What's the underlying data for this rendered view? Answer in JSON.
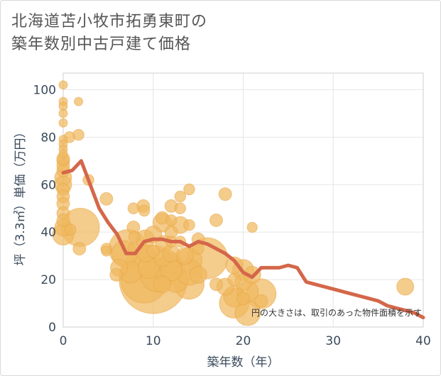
{
  "chart_data": {
    "type": "scatter",
    "title_lines": [
      "北海道苫小牧市拓勇東町の",
      "築年数別中古戸建て価格"
    ],
    "xlabel": "築年数（年）",
    "ylabel": "坪（3.3㎡）単価（万円）",
    "xlim": [
      0,
      40
    ],
    "ylim": [
      0,
      107
    ],
    "x_ticks": [
      0,
      10,
      20,
      30,
      40
    ],
    "y_ticks": [
      0,
      20,
      40,
      60,
      80,
      100
    ],
    "note": "円の大きさは、取引のあった物件面積を示す",
    "colors": {
      "bubble": "#f0b860",
      "bubble_edge": "#e8a23c",
      "line": "#d4674a",
      "grid": "#e6e6e6"
    },
    "bubbles": [
      {
        "x": 0,
        "y": 102,
        "s": 1
      },
      {
        "x": 0,
        "y": 95,
        "s": 1
      },
      {
        "x": 0,
        "y": 93,
        "s": 1
      },
      {
        "x": 0,
        "y": 90,
        "s": 1
      },
      {
        "x": 0,
        "y": 86,
        "s": 1
      },
      {
        "x": 0,
        "y": 79,
        "s": 1
      },
      {
        "x": 0,
        "y": 77,
        "s": 1
      },
      {
        "x": 0,
        "y": 75,
        "s": 1
      },
      {
        "x": 0,
        "y": 73,
        "s": 1
      },
      {
        "x": 0,
        "y": 70,
        "s": 1.5
      },
      {
        "x": 0,
        "y": 66,
        "s": 1.5
      },
      {
        "x": 0,
        "y": 63,
        "s": 2
      },
      {
        "x": 0,
        "y": 60,
        "s": 2
      },
      {
        "x": 0,
        "y": 58,
        "s": 1.5
      },
      {
        "x": 0,
        "y": 55,
        "s": 1.5
      },
      {
        "x": 0,
        "y": 52,
        "s": 1.5
      },
      {
        "x": 0,
        "y": 48,
        "s": 1.5
      },
      {
        "x": 0,
        "y": 45,
        "s": 1.5
      },
      {
        "x": 0,
        "y": 42,
        "s": 2
      },
      {
        "x": 0,
        "y": 39,
        "s": 2.5
      },
      {
        "x": 0,
        "y": 68,
        "s": 1.5
      },
      {
        "x": 0,
        "y": 71,
        "s": 1.5
      },
      {
        "x": 0.7,
        "y": 80,
        "s": 1.3
      },
      {
        "x": 0.8,
        "y": 41,
        "s": 1.3
      },
      {
        "x": 1.7,
        "y": 95,
        "s": 1
      },
      {
        "x": 1.7,
        "y": 81,
        "s": 1.3
      },
      {
        "x": 1.9,
        "y": 42,
        "s": 4.5
      },
      {
        "x": 1.8,
        "y": 33,
        "s": 1.5
      },
      {
        "x": 2.8,
        "y": 62,
        "s": 1.3
      },
      {
        "x": 4.8,
        "y": 54,
        "s": 1.5
      },
      {
        "x": 4.8,
        "y": 33,
        "s": 1.3
      },
      {
        "x": 4.8,
        "y": 32,
        "s": 1.2
      },
      {
        "x": 5.9,
        "y": 22,
        "s": 1.5
      },
      {
        "x": 6.2,
        "y": 25,
        "s": 2
      },
      {
        "x": 6.8,
        "y": 31,
        "s": 3
      },
      {
        "x": 7.2,
        "y": 33,
        "s": 4.5
      },
      {
        "x": 7.5,
        "y": 23,
        "s": 2.5
      },
      {
        "x": 7.8,
        "y": 50,
        "s": 1.3
      },
      {
        "x": 7.8,
        "y": 42,
        "s": 1.5
      },
      {
        "x": 7.9,
        "y": 38,
        "s": 1.3
      },
      {
        "x": 7.8,
        "y": 33,
        "s": 1.3
      },
      {
        "x": 8.9,
        "y": 51,
        "s": 1.5
      },
      {
        "x": 9,
        "y": 49,
        "s": 1.3
      },
      {
        "x": 9.1,
        "y": 37,
        "s": 2.2
      },
      {
        "x": 9.2,
        "y": 31,
        "s": 2
      },
      {
        "x": 9.0,
        "y": 20,
        "s": 5.5
      },
      {
        "x": 9.5,
        "y": 25,
        "s": 2.5
      },
      {
        "x": 10,
        "y": 32,
        "s": 1.5
      },
      {
        "x": 10,
        "y": 39,
        "s": 2
      },
      {
        "x": 10,
        "y": 20,
        "s": 8
      },
      {
        "x": 10.5,
        "y": 22,
        "s": 4
      },
      {
        "x": 11,
        "y": 46,
        "s": 1.5
      },
      {
        "x": 11,
        "y": 44,
        "s": 2.2
      },
      {
        "x": 11.2,
        "y": 35,
        "s": 2
      },
      {
        "x": 11,
        "y": 29,
        "s": 2
      },
      {
        "x": 11.5,
        "y": 24,
        "s": 3
      },
      {
        "x": 11,
        "y": 18,
        "s": 2
      },
      {
        "x": 12,
        "y": 51,
        "s": 1.5
      },
      {
        "x": 12,
        "y": 45,
        "s": 1.3
      },
      {
        "x": 12,
        "y": 40,
        "s": 1.5
      },
      {
        "x": 12,
        "y": 36,
        "s": 1.3
      },
      {
        "x": 12,
        "y": 31,
        "s": 2
      },
      {
        "x": 12,
        "y": 27,
        "s": 2.5
      },
      {
        "x": 12,
        "y": 24,
        "s": 2.5
      },
      {
        "x": 12.5,
        "y": 20,
        "s": 3
      },
      {
        "x": 13,
        "y": 55,
        "s": 1.3
      },
      {
        "x": 13,
        "y": 50,
        "s": 1.3
      },
      {
        "x": 13,
        "y": 43,
        "s": 2
      },
      {
        "x": 13,
        "y": 36,
        "s": 1.3
      },
      {
        "x": 13.5,
        "y": 30,
        "s": 2
      },
      {
        "x": 14,
        "y": 28,
        "s": 3
      },
      {
        "x": 14,
        "y": 23,
        "s": 3
      },
      {
        "x": 14,
        "y": 18,
        "s": 3.5
      },
      {
        "x": 14,
        "y": 58,
        "s": 1.3
      },
      {
        "x": 14,
        "y": 43,
        "s": 1.3
      },
      {
        "x": 15,
        "y": 37,
        "s": 1.5
      },
      {
        "x": 15,
        "y": 33,
        "s": 1.3
      },
      {
        "x": 16,
        "y": 29,
        "s": 4.8
      },
      {
        "x": 15,
        "y": 22,
        "s": 2
      },
      {
        "x": 17,
        "y": 45,
        "s": 1.5
      },
      {
        "x": 17,
        "y": 18,
        "s": 1.5
      },
      {
        "x": 18,
        "y": 56,
        "s": 1.5
      },
      {
        "x": 18,
        "y": 17,
        "s": 2
      },
      {
        "x": 19,
        "y": 10,
        "s": 3.5
      },
      {
        "x": 19,
        "y": 13,
        "s": 2.5
      },
      {
        "x": 19,
        "y": 26,
        "s": 2
      },
      {
        "x": 19,
        "y": 20,
        "s": 1.5
      },
      {
        "x": 20,
        "y": 24,
        "s": 2.5
      },
      {
        "x": 20,
        "y": 19,
        "s": 2
      },
      {
        "x": 20.5,
        "y": 15,
        "s": 2.5
      },
      {
        "x": 20,
        "y": 12,
        "s": 1.5
      },
      {
        "x": 20.5,
        "y": 6,
        "s": 3
      },
      {
        "x": 21,
        "y": 42,
        "s": 1.2
      },
      {
        "x": 21,
        "y": 22,
        "s": 2
      },
      {
        "x": 22,
        "y": 14,
        "s": 3.5
      },
      {
        "x": 22,
        "y": 11,
        "s": 1.5
      },
      {
        "x": 38,
        "y": 17,
        "s": 2
      }
    ],
    "trend": {
      "x": [
        0,
        1,
        2,
        3,
        4,
        5,
        6,
        7,
        8,
        9,
        10,
        11,
        12,
        13,
        14,
        15,
        16,
        17,
        18,
        19,
        20,
        21,
        22,
        23,
        24,
        25,
        26,
        27,
        28,
        29,
        30,
        31,
        32,
        33,
        34,
        35,
        36,
        37,
        38,
        39,
        40
      ],
      "y": [
        65,
        66,
        70,
        60,
        50,
        44,
        39,
        31,
        31,
        36,
        37,
        37,
        36,
        36,
        34,
        36,
        35,
        33,
        31,
        28,
        23,
        21,
        25,
        25,
        25,
        26,
        25,
        19,
        18,
        17,
        16,
        15,
        14,
        13,
        12,
        11,
        9,
        8,
        7,
        6,
        4
      ]
    }
  }
}
